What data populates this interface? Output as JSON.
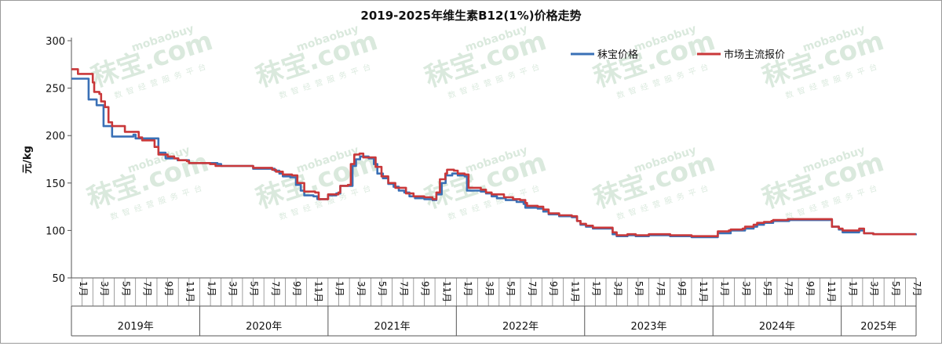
{
  "chart_data": {
    "type": "line",
    "title": "2019-2025年维生素B12(1%)价格走势",
    "ylabel": "元/kg",
    "xlabel": "",
    "ylim": [
      50,
      300
    ],
    "y_ticks": [
      50,
      100,
      150,
      200,
      250,
      300
    ],
    "x_range": [
      "2019-01",
      "2025-07"
    ],
    "month_tick_labels": [
      "1月",
      "3月",
      "5月",
      "7月",
      "9月",
      "11月"
    ],
    "years": [
      "2019年",
      "2020年",
      "2021年",
      "2022年",
      "2023年",
      "2024年",
      "2025年"
    ],
    "legend_position": "top-right",
    "grid": false,
    "watermark": "秣宝.com mobaobuy 数智经营服务平台",
    "series": [
      {
        "name": "秣宝价格",
        "color": "#3a70b6",
        "points": [
          [
            "2019-01-01",
            260
          ],
          [
            "2019-02-15",
            260
          ],
          [
            "2019-02-18",
            238
          ],
          [
            "2019-03-08",
            238
          ],
          [
            "2019-03-12",
            232
          ],
          [
            "2019-03-25",
            232
          ],
          [
            "2019-04-01",
            210
          ],
          [
            "2019-04-20",
            210
          ],
          [
            "2019-04-25",
            199
          ],
          [
            "2019-06-20",
            199
          ],
          [
            "2019-06-25",
            201
          ],
          [
            "2019-07-01",
            197
          ],
          [
            "2019-08-31",
            197
          ],
          [
            "2019-09-05",
            182
          ],
          [
            "2019-09-20",
            182
          ],
          [
            "2019-09-25",
            176
          ],
          [
            "2019-10-25",
            176
          ],
          [
            "2019-10-30",
            174
          ],
          [
            "2019-11-25",
            174
          ],
          [
            "2019-12-01",
            171
          ],
          [
            "2020-02-20",
            170
          ],
          [
            "2020-03-01",
            168
          ],
          [
            "2020-05-25",
            168
          ],
          [
            "2020-06-01",
            165
          ],
          [
            "2020-07-20",
            165
          ],
          [
            "2020-08-01",
            163
          ],
          [
            "2020-08-15",
            160
          ],
          [
            "2020-08-25",
            157
          ],
          [
            "2020-09-15",
            156
          ],
          [
            "2020-10-01",
            148
          ],
          [
            "2020-10-15",
            142
          ],
          [
            "2020-10-25",
            137
          ],
          [
            "2020-11-20",
            136
          ],
          [
            "2020-12-01",
            133
          ],
          [
            "2020-12-20",
            133
          ],
          [
            "2021-01-01",
            137
          ],
          [
            "2021-01-25",
            139
          ],
          [
            "2021-02-05",
            147
          ],
          [
            "2021-02-28",
            147
          ],
          [
            "2021-03-10",
            168
          ],
          [
            "2021-03-20",
            175
          ],
          [
            "2021-04-01",
            178
          ],
          [
            "2021-04-25",
            176
          ],
          [
            "2021-05-01",
            176
          ],
          [
            "2021-05-10",
            170
          ],
          [
            "2021-05-20",
            160
          ],
          [
            "2021-06-05",
            155
          ],
          [
            "2021-06-20",
            149
          ],
          [
            "2021-07-05",
            146
          ],
          [
            "2021-07-20",
            142
          ],
          [
            "2021-08-05",
            140
          ],
          [
            "2021-08-20",
            136
          ],
          [
            "2021-09-05",
            134
          ],
          [
            "2021-10-01",
            133
          ],
          [
            "2021-10-25",
            132
          ],
          [
            "2021-11-05",
            138
          ],
          [
            "2021-11-20",
            150
          ],
          [
            "2021-12-01",
            158
          ],
          [
            "2021-12-20",
            160
          ],
          [
            "2022-01-05",
            158
          ],
          [
            "2022-01-25",
            157
          ],
          [
            "2022-02-01",
            142
          ],
          [
            "2022-03-10",
            141
          ],
          [
            "2022-03-25",
            139
          ],
          [
            "2022-04-10",
            136
          ],
          [
            "2022-04-25",
            134
          ],
          [
            "2022-05-20",
            132
          ],
          [
            "2022-06-20",
            130
          ],
          [
            "2022-07-10",
            128
          ],
          [
            "2022-07-15",
            124
          ],
          [
            "2022-08-20",
            123
          ],
          [
            "2022-09-05",
            120
          ],
          [
            "2022-09-20",
            117
          ],
          [
            "2022-10-20",
            115
          ],
          [
            "2022-11-25",
            114
          ],
          [
            "2022-12-10",
            110
          ],
          [
            "2022-12-20",
            106
          ],
          [
            "2023-01-05",
            104
          ],
          [
            "2023-01-25",
            102
          ],
          [
            "2023-03-10",
            102
          ],
          [
            "2023-03-20",
            96
          ],
          [
            "2023-04-01",
            94
          ],
          [
            "2023-04-25",
            94
          ],
          [
            "2023-05-01",
            95
          ],
          [
            "2023-05-25",
            94
          ],
          [
            "2023-06-15",
            94
          ],
          [
            "2023-07-01",
            95
          ],
          [
            "2023-08-01",
            95
          ],
          [
            "2023-09-01",
            94
          ],
          [
            "2023-10-20",
            94
          ],
          [
            "2023-11-01",
            93
          ],
          [
            "2024-01-10",
            93
          ],
          [
            "2024-01-15",
            97
          ],
          [
            "2024-02-15",
            97
          ],
          [
            "2024-02-20",
            100
          ],
          [
            "2024-03-25",
            100
          ],
          [
            "2024-04-01",
            102
          ],
          [
            "2024-04-25",
            104
          ],
          [
            "2024-05-05",
            106
          ],
          [
            "2024-05-25",
            108
          ],
          [
            "2024-06-15",
            108
          ],
          [
            "2024-06-20",
            110
          ],
          [
            "2024-08-01",
            110
          ],
          [
            "2024-08-05",
            111
          ],
          [
            "2024-11-30",
            111
          ],
          [
            "2024-12-05",
            104
          ],
          [
            "2024-12-25",
            101
          ],
          [
            "2025-01-05",
            98
          ],
          [
            "2025-02-10",
            98
          ],
          [
            "2025-02-20",
            100
          ],
          [
            "2025-03-05",
            97
          ],
          [
            "2025-04-01",
            96
          ],
          [
            "2025-07-31",
            95
          ]
        ]
      },
      {
        "name": "市场主流报价",
        "color": "#c9383a",
        "points": [
          [
            "2019-01-01",
            270
          ],
          [
            "2019-01-15",
            270
          ],
          [
            "2019-01-20",
            265
          ],
          [
            "2019-02-25",
            265
          ],
          [
            "2019-03-01",
            256
          ],
          [
            "2019-03-05",
            246
          ],
          [
            "2019-03-20",
            244
          ],
          [
            "2019-03-25",
            236
          ],
          [
            "2019-04-05",
            230
          ],
          [
            "2019-04-15",
            214
          ],
          [
            "2019-04-25",
            210
          ],
          [
            "2019-05-25",
            210
          ],
          [
            "2019-06-01",
            204
          ],
          [
            "2019-06-30",
            204
          ],
          [
            "2019-07-10",
            198
          ],
          [
            "2019-07-20",
            195
          ],
          [
            "2019-08-10",
            195
          ],
          [
            "2019-08-25",
            188
          ],
          [
            "2019-09-05",
            180
          ],
          [
            "2019-09-20",
            180
          ],
          [
            "2019-10-01",
            178
          ],
          [
            "2019-10-20",
            176
          ],
          [
            "2019-11-01",
            174
          ],
          [
            "2019-11-25",
            173
          ],
          [
            "2019-12-01",
            171
          ],
          [
            "2020-01-31",
            170
          ],
          [
            "2020-02-15",
            168
          ],
          [
            "2020-05-25",
            168
          ],
          [
            "2020-06-01",
            166
          ],
          [
            "2020-06-30",
            166
          ],
          [
            "2020-07-25",
            164
          ],
          [
            "2020-08-05",
            162
          ],
          [
            "2020-08-25",
            159
          ],
          [
            "2020-09-20",
            158
          ],
          [
            "2020-10-05",
            150
          ],
          [
            "2020-10-25",
            141
          ],
          [
            "2020-11-25",
            140
          ],
          [
            "2020-12-05",
            133
          ],
          [
            "2020-12-20",
            133
          ],
          [
            "2021-01-01",
            138
          ],
          [
            "2021-01-31",
            140
          ],
          [
            "2021-02-05",
            147
          ],
          [
            "2021-02-25",
            148
          ],
          [
            "2021-03-05",
            170
          ],
          [
            "2021-03-15",
            180
          ],
          [
            "2021-03-30",
            181
          ],
          [
            "2021-04-10",
            177
          ],
          [
            "2021-05-05",
            177
          ],
          [
            "2021-05-15",
            167
          ],
          [
            "2021-06-01",
            157
          ],
          [
            "2021-06-20",
            150
          ],
          [
            "2021-07-10",
            145
          ],
          [
            "2021-07-25",
            145
          ],
          [
            "2021-08-10",
            139
          ],
          [
            "2021-09-01",
            136
          ],
          [
            "2021-10-01",
            135
          ],
          [
            "2021-10-25",
            133
          ],
          [
            "2021-11-05",
            140
          ],
          [
            "2021-11-15",
            154
          ],
          [
            "2021-11-30",
            160
          ],
          [
            "2021-12-05",
            164
          ],
          [
            "2021-12-25",
            163
          ],
          [
            "2022-01-05",
            160
          ],
          [
            "2022-01-25",
            159
          ],
          [
            "2022-02-05",
            145
          ],
          [
            "2022-03-10",
            143
          ],
          [
            "2022-03-25",
            140
          ],
          [
            "2022-04-10",
            138
          ],
          [
            "2022-05-15",
            135
          ],
          [
            "2022-06-10",
            133
          ],
          [
            "2022-06-30",
            132
          ],
          [
            "2022-07-15",
            129
          ],
          [
            "2022-07-20",
            126
          ],
          [
            "2022-08-20",
            125
          ],
          [
            "2022-09-05",
            122
          ],
          [
            "2022-09-20",
            118
          ],
          [
            "2022-10-20",
            116
          ],
          [
            "2022-11-25",
            115
          ],
          [
            "2022-12-10",
            110
          ],
          [
            "2022-12-20",
            107
          ],
          [
            "2023-01-05",
            105
          ],
          [
            "2023-01-25",
            103
          ],
          [
            "2023-03-10",
            103
          ],
          [
            "2023-03-20",
            98
          ],
          [
            "2023-04-01",
            95
          ],
          [
            "2023-04-25",
            95
          ],
          [
            "2023-05-01",
            96
          ],
          [
            "2023-05-25",
            95
          ],
          [
            "2023-06-15",
            95
          ],
          [
            "2023-07-01",
            96
          ],
          [
            "2023-08-01",
            96
          ],
          [
            "2023-09-01",
            95
          ],
          [
            "2023-10-20",
            95
          ],
          [
            "2023-11-01",
            94
          ],
          [
            "2024-01-10",
            94
          ],
          [
            "2024-01-15",
            99
          ],
          [
            "2024-02-15",
            100
          ],
          [
            "2024-02-20",
            101
          ],
          [
            "2024-03-25",
            102
          ],
          [
            "2024-04-01",
            104
          ],
          [
            "2024-04-25",
            106
          ],
          [
            "2024-05-05",
            108
          ],
          [
            "2024-05-25",
            109
          ],
          [
            "2024-06-15",
            110
          ],
          [
            "2024-06-20",
            111
          ],
          [
            "2024-08-01",
            112
          ],
          [
            "2024-11-30",
            112
          ],
          [
            "2024-12-05",
            104
          ],
          [
            "2024-12-25",
            102
          ],
          [
            "2025-01-05",
            100
          ],
          [
            "2025-02-10",
            100
          ],
          [
            "2025-02-20",
            102
          ],
          [
            "2025-03-05",
            97
          ],
          [
            "2025-04-01",
            96
          ],
          [
            "2025-07-31",
            96
          ]
        ]
      }
    ]
  }
}
